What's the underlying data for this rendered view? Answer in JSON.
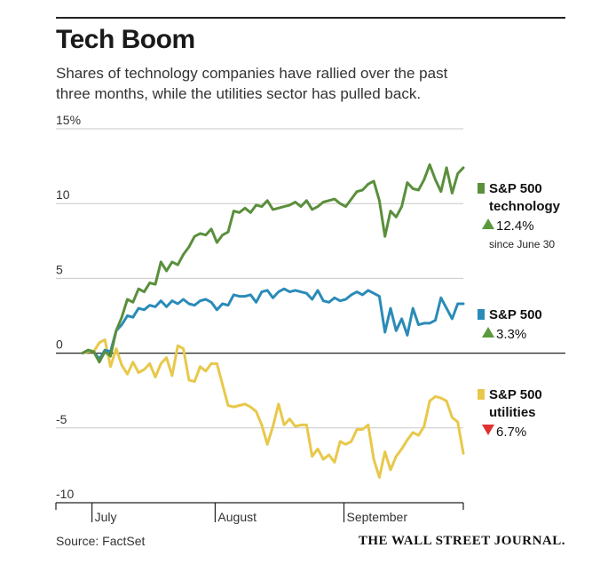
{
  "header": {
    "title": "Tech Boom",
    "subtitle": "Shares of technology companies have rallied over the past three months, while the utilities sector has pulled back."
  },
  "footer": {
    "source": "Source: FactSet",
    "brand": "THE WALL STREET JOURNAL."
  },
  "chart_data": {
    "type": "line",
    "title": "Tech Boom",
    "subtitle": "Shares of technology companies have rallied over the past three months, while the utilities sector has pulled back.",
    "ylim": [
      -10,
      15
    ],
    "yticks": [
      15,
      10,
      5,
      0,
      -5,
      -10
    ],
    "ytick_labels": [
      "15%",
      "10",
      "5",
      "0",
      "-5",
      "-10"
    ],
    "xticks": [
      "July",
      "August",
      "September"
    ],
    "xtick_index": [
      2,
      24,
      47
    ],
    "n_points": 69,
    "grid": "horizontal",
    "legend": "right",
    "series": [
      {
        "name": "S&P 500 technology",
        "color": "#5a8f3c",
        "change": "12.4%",
        "direction": "up",
        "note": "since June 30",
        "values": [
          0,
          0.2,
          0.1,
          -0.6,
          0.1,
          -0.2,
          1.5,
          2.4,
          3.6,
          3.4,
          4.3,
          4.1,
          4.7,
          4.6,
          6.1,
          5.5,
          6.1,
          5.9,
          6.6,
          7.1,
          7.8,
          8.0,
          7.9,
          8.3,
          7.4,
          7.9,
          8.1,
          9.5,
          9.4,
          9.7,
          9.4,
          9.9,
          9.8,
          10.2,
          9.6,
          9.7,
          9.8,
          9.9,
          10.1,
          9.8,
          10.2,
          9.6,
          9.8,
          10.1,
          10.2,
          10.3,
          10.0,
          9.8,
          10.3,
          10.8,
          10.9,
          11.3,
          11.5,
          10.2,
          7.8,
          9.5,
          9.1,
          9.8,
          11.4,
          11.0,
          10.9,
          11.6,
          12.6,
          11.6,
          10.8,
          12.4,
          10.7,
          12.0,
          12.4
        ]
      },
      {
        "name": "S&P 500",
        "color": "#2a8bb8",
        "change": "3.3%",
        "direction": "up",
        "note": "",
        "values": [
          0,
          0.2,
          0.1,
          -0.4,
          0.2,
          0.1,
          1.5,
          1.9,
          2.5,
          2.4,
          3.0,
          2.9,
          3.2,
          3.1,
          3.5,
          3.1,
          3.5,
          3.3,
          3.6,
          3.3,
          3.2,
          3.5,
          3.6,
          3.4,
          2.9,
          3.3,
          3.2,
          3.9,
          3.8,
          3.8,
          3.9,
          3.4,
          4.1,
          4.2,
          3.7,
          4.1,
          4.3,
          4.1,
          4.2,
          4.1,
          4.0,
          3.6,
          4.2,
          3.5,
          3.4,
          3.7,
          3.5,
          3.6,
          3.9,
          4.1,
          3.9,
          4.2,
          4.0,
          3.8,
          1.4,
          3.0,
          1.5,
          2.3,
          1.2,
          3.0,
          1.9,
          2.0,
          2.0,
          2.2,
          3.7,
          3.0,
          2.3,
          3.3,
          3.3
        ]
      },
      {
        "name": "S&P 500 utilities",
        "color": "#e8c84a",
        "change": "6.7%",
        "direction": "down",
        "note": "",
        "values": [
          0,
          0.1,
          0.1,
          0.7,
          0.9,
          -0.9,
          0.3,
          -0.8,
          -1.4,
          -0.6,
          -1.3,
          -1.1,
          -0.7,
          -1.6,
          -0.7,
          -0.3,
          -1.5,
          0.5,
          0.3,
          -1.8,
          -1.9,
          -0.9,
          -1.2,
          -0.7,
          -0.7,
          -2.1,
          -3.5,
          -3.6,
          -3.5,
          -3.4,
          -3.6,
          -3.9,
          -4.8,
          -6.1,
          -4.9,
          -3.4,
          -4.8,
          -4.4,
          -4.9,
          -4.8,
          -4.8,
          -6.9,
          -6.4,
          -7.1,
          -6.8,
          -7.3,
          -5.9,
          -6.1,
          -5.9,
          -5.1,
          -5.1,
          -4.8,
          -7.1,
          -8.3,
          -6.6,
          -7.8,
          -6.9,
          -6.4,
          -5.8,
          -5.3,
          -5.5,
          -4.9,
          -3.2,
          -2.9,
          -3.0,
          -3.2,
          -4.3,
          -4.6,
          -6.7
        ]
      }
    ]
  }
}
